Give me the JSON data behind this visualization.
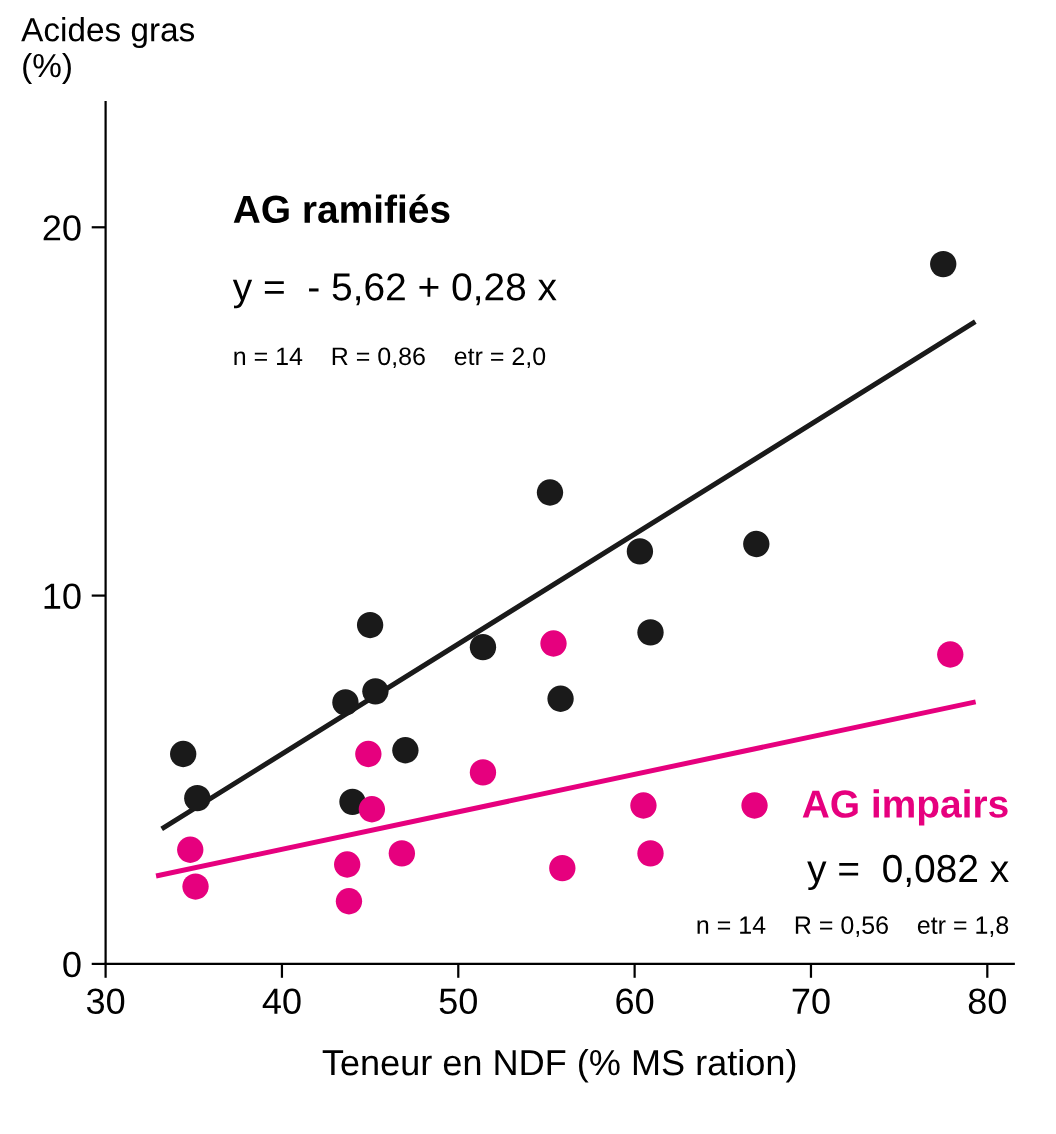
{
  "chart_data": {
    "type": "scatter",
    "xlabel": "Teneur en NDF (% MS ration)",
    "ylabel": "Acides gras\n(%)",
    "xlim": [
      30,
      81.5
    ],
    "ylim": [
      0,
      23.4
    ],
    "xticks": [
      30,
      40,
      50,
      60,
      70,
      80
    ],
    "yticks": [
      0,
      10,
      20
    ],
    "grid": false,
    "legend": false,
    "marker": "circle",
    "series": [
      {
        "name": "AG ramifiés",
        "color": "#1a1a1a",
        "x": [
          34.4,
          35.2,
          43.6,
          44.0,
          45.0,
          45.3,
          47.0,
          51.4,
          55.2,
          55.8,
          60.3,
          60.9,
          66.9,
          77.5
        ],
        "values": [
          5.7,
          4.5,
          7.1,
          4.4,
          9.2,
          7.4,
          5.8,
          8.6,
          12.8,
          7.2,
          11.2,
          9.0,
          11.4,
          19.0
        ]
      },
      {
        "name": "AG impairs",
        "color": "#e6007e",
        "x": [
          34.8,
          35.1,
          44.9,
          45.1,
          43.7,
          43.8,
          46.8,
          51.4,
          55.4,
          55.9,
          60.5,
          60.9,
          66.8,
          77.9
        ],
        "values": [
          3.1,
          2.1,
          5.7,
          4.2,
          2.7,
          1.7,
          3.0,
          5.2,
          8.7,
          2.6,
          4.3,
          3.0,
          4.3,
          8.4
        ]
      },
      {
        "type": "line",
        "marker": "none",
        "color": "#1a1a1a",
        "x": [
          33.3,
          79.2
        ],
        "values": [
          3.7,
          17.4
        ]
      },
      {
        "type": "line",
        "marker": "none",
        "color": "#e6007e",
        "x": [
          33.0,
          79.2
        ],
        "values": [
          2.4,
          7.1
        ]
      }
    ],
    "annotations": [
      "y =  - 5,62 + 0,28 x",
      "n = 14    R = 0,86    etr = 2,0",
      "y =  0,082 x",
      "n = 14    R = 0,56    etr = 1,8"
    ]
  }
}
